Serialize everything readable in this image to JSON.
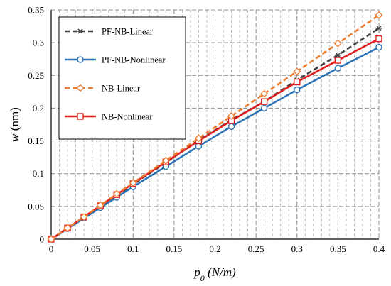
{
  "chart_data": {
    "type": "line",
    "xlabel": "p0 (N/m)",
    "ylabel": "w (nm)",
    "xlim": [
      0,
      0.4
    ],
    "ylim": [
      0,
      0.35
    ],
    "x_ticks": [
      "0",
      "0.05",
      "0.1",
      "0.15",
      "0.2",
      "0.25",
      "0.3",
      "0.35",
      "0.4"
    ],
    "y_ticks": [
      "0",
      "0.05",
      "0.1",
      "0.15",
      "0.2",
      "0.25",
      "0.3",
      "0.35"
    ],
    "grid": true,
    "legend_position": "top-left",
    "series": [
      {
        "name": "PF-NB-Linear",
        "color": "#404040",
        "dash": "dashed",
        "marker": "asterisk",
        "x": [
          0,
          0.02,
          0.04,
          0.06,
          0.08,
          0.1,
          0.14,
          0.18,
          0.22,
          0.26,
          0.3,
          0.35,
          0.4
        ],
        "y": [
          0,
          0.016,
          0.033,
          0.05,
          0.066,
          0.084,
          0.117,
          0.151,
          0.182,
          0.21,
          0.243,
          0.281,
          0.322
        ]
      },
      {
        "name": "PF-NB-Nonlinear",
        "color": "#2E75B6",
        "dash": "solid",
        "marker": "circle",
        "x": [
          0,
          0.02,
          0.04,
          0.06,
          0.08,
          0.1,
          0.14,
          0.18,
          0.22,
          0.26,
          0.3,
          0.35,
          0.4
        ],
        "y": [
          0,
          0.016,
          0.032,
          0.048,
          0.064,
          0.08,
          0.111,
          0.142,
          0.172,
          0.2,
          0.228,
          0.261,
          0.293
        ]
      },
      {
        "name": "NB-Linear",
        "color": "#ED7D31",
        "dash": "dashed",
        "marker": "diamond",
        "x": [
          0,
          0.02,
          0.04,
          0.06,
          0.08,
          0.1,
          0.14,
          0.18,
          0.22,
          0.26,
          0.3,
          0.35,
          0.4
        ],
        "y": [
          0,
          0.017,
          0.034,
          0.052,
          0.069,
          0.086,
          0.12,
          0.154,
          0.188,
          0.222,
          0.256,
          0.299,
          0.342
        ]
      },
      {
        "name": "NB-Nonlinear",
        "color": "#E02020",
        "dash": "solid",
        "marker": "square",
        "x": [
          0,
          0.02,
          0.04,
          0.06,
          0.08,
          0.1,
          0.14,
          0.18,
          0.22,
          0.26,
          0.3,
          0.35,
          0.4
        ],
        "y": [
          0,
          0.017,
          0.034,
          0.051,
          0.068,
          0.085,
          0.118,
          0.15,
          0.181,
          0.21,
          0.24,
          0.273,
          0.306
        ]
      }
    ]
  }
}
